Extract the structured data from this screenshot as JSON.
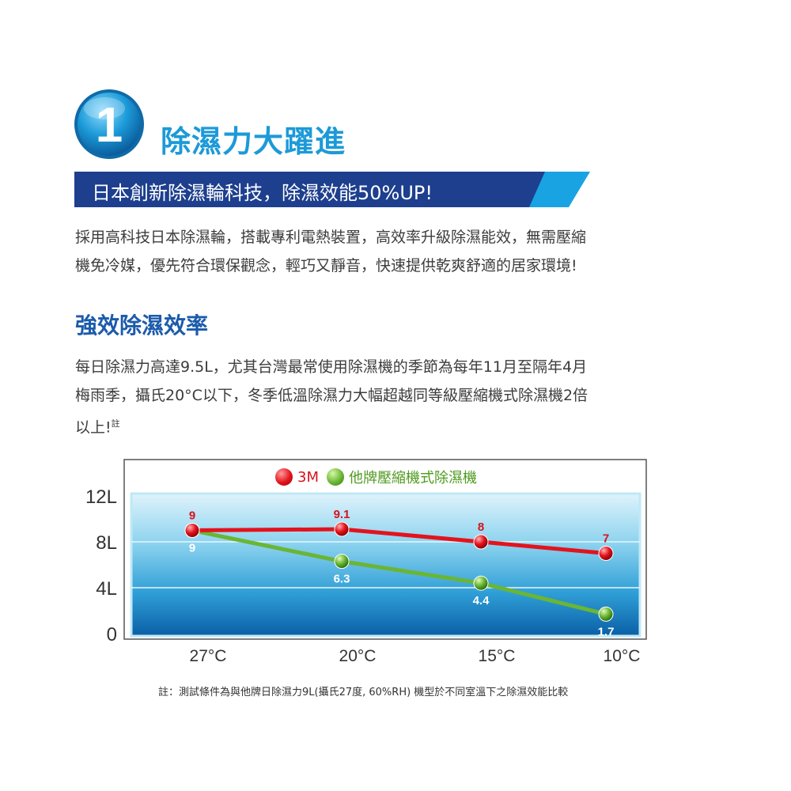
{
  "header": {
    "badge_number": "1",
    "title": "除濕力大躍進",
    "banner_text": "日本創新除濕輪科技，除濕效能50%UP!",
    "colors": {
      "accent": "#1c9ad8",
      "banner_dark": "#1d3f8e",
      "banner_light": "#19a3e3"
    }
  },
  "intro": {
    "line1": "採用高科技日本除濕輪，搭載專利電熱裝置，高效率升級除濕能效，無需壓縮",
    "line2": "機免冷媒，優先符合環保觀念，輕巧又靜音，快速提供乾爽舒適的居家環境!"
  },
  "section": {
    "title": "強效除濕效率",
    "line1": "每日除濕力高達9.5L，尤其台灣最常使用除濕機的季節為每年11月至隔年4月",
    "line2": "梅雨季，攝氏20°C以下，冬季低溫除濕力大幅超越同等級壓縮機式除濕機2倍",
    "line3": "以上!",
    "note_mark": "註"
  },
  "chart_data": {
    "type": "line",
    "categories": [
      "27°C",
      "20°C",
      "15°C",
      "10°C"
    ],
    "series": [
      {
        "name": "3M",
        "values": [
          9,
          9.1,
          8,
          7
        ],
        "labels": [
          "9",
          "9.1",
          "8",
          "7"
        ],
        "color": "#e3131d"
      },
      {
        "name": "他牌壓縮機式除濕機",
        "values": [
          9,
          6.3,
          4.4,
          1.7
        ],
        "labels": [
          "9",
          "6.3",
          "4.4",
          "1.7"
        ],
        "color": "#6ab634"
      }
    ],
    "y_ticks": [
      {
        "value": 0,
        "label": "0"
      },
      {
        "value": 4,
        "label": "4L"
      },
      {
        "value": 8,
        "label": "8L"
      },
      {
        "value": 12,
        "label": "12L"
      }
    ],
    "ylim": [
      0,
      12
    ],
    "grid": true,
    "legend": "top-center"
  },
  "footnote": "註：測試條件為與他牌日除濕力9L(攝氏27度, 60%RH) 機型於不同室溫下之除濕效能比較"
}
